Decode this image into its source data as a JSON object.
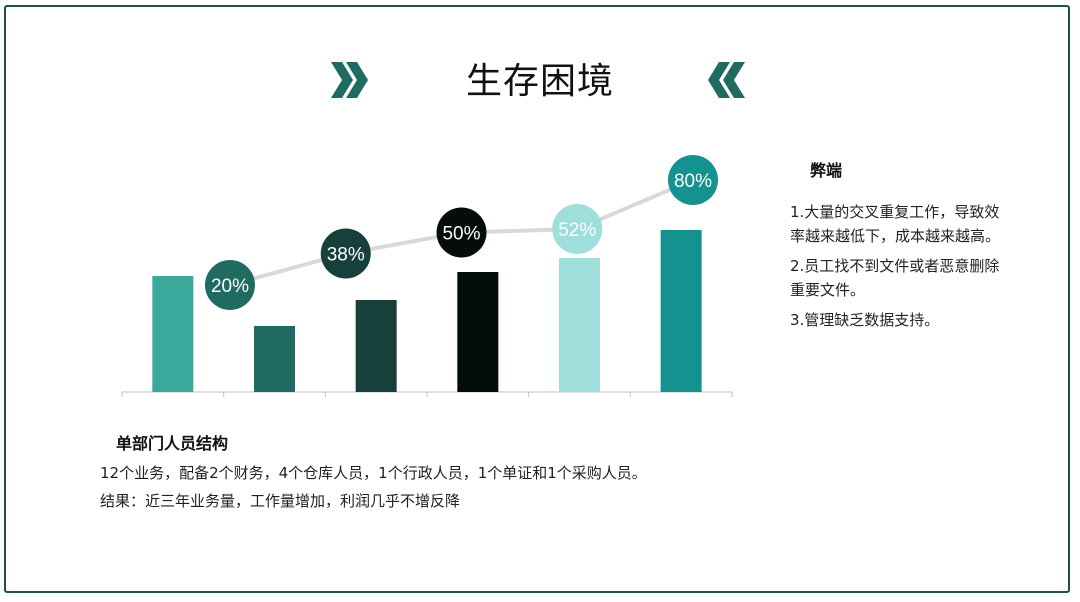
{
  "slide": {
    "title": "生存困境",
    "icons": {
      "left": "double-chevron-right-icon",
      "right": "double-chevron-left-icon"
    }
  },
  "side": {
    "title": "弊端",
    "items": [
      "1.大量的交叉重复工作，导致效率越来越低下，成本越来越高。",
      "2.员工找不到文件或者恶意删除重要文件。",
      "3.管理缺乏数据支持。"
    ]
  },
  "bottom": {
    "title": "单部门人员结构",
    "line1": "12个业务，配备2个财务，4个仓库人员，1个行政人员，1个单证和1个采购人员。",
    "line2": "结果：近三年业务量，工作量增加，利润几乎不增反降"
  },
  "colors": {
    "border": "#1f4f4a",
    "trend_line": "#d9d9d9",
    "bar_colors": [
      "#3aa89b",
      "#1f6b62",
      "#173f3b",
      "#050d0c",
      "#9edfdb",
      "#13928f"
    ],
    "bubble_colors": [
      "#1f6b62",
      "#173f3b",
      "#050d0c",
      "#9edfdb",
      "#13928f"
    ]
  },
  "chart_data": {
    "type": "bar",
    "categories": [
      "",
      "",
      "",
      "",
      "",
      ""
    ],
    "values": [
      58,
      33,
      46,
      60,
      67,
      81
    ],
    "ylim": [
      0,
      100
    ],
    "grid": false,
    "line_series": {
      "values": [
        20,
        38,
        50,
        52,
        80
      ],
      "labels": [
        "20%",
        "38%",
        "50%",
        "52%",
        "80%"
      ]
    }
  }
}
